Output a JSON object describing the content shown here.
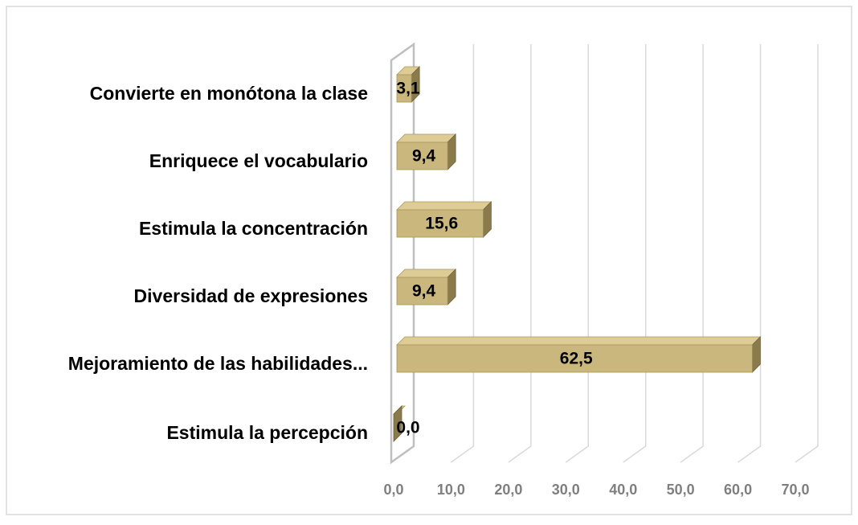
{
  "chart_data": {
    "type": "bar3d_horizontal",
    "categories": [
      "Convierte en monótona la clase",
      "Enriquece el vocabulario",
      "Estimula la concentración",
      "Diversidad de expresiones",
      "Mejoramiento de las habilidades...",
      "Estimula la percepción"
    ],
    "values": [
      3.1,
      9.4,
      15.6,
      9.4,
      62.5,
      0.0
    ],
    "value_labels": [
      "3,1",
      "9,4",
      "15,6",
      "9,4",
      "62,5",
      "0,0"
    ],
    "color": "#c9b77d",
    "xlim": [
      0,
      70
    ],
    "xticks": [
      {
        "value": 0,
        "label": "0,0"
      },
      {
        "value": 10,
        "label": "10,0"
      },
      {
        "value": 20,
        "label": "20,0"
      },
      {
        "value": 30,
        "label": "30,0"
      },
      {
        "value": 40,
        "label": "40,0"
      },
      {
        "value": 50,
        "label": "50,0"
      },
      {
        "value": 60,
        "label": "60,0"
      },
      {
        "value": 70,
        "label": "70,0"
      }
    ],
    "grid": true
  }
}
